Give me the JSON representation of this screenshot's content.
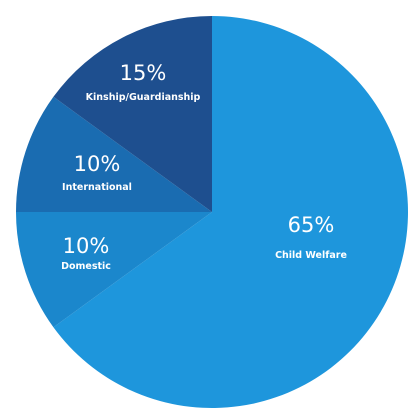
{
  "chart_data": {
    "type": "pie",
    "title": "",
    "start_angle_deg": 0,
    "direction": "clockwise",
    "slices": [
      {
        "label": "Child Welfare",
        "pct_label": "65%",
        "value": 65,
        "color": "#1e96dc"
      },
      {
        "label": "Domestic",
        "pct_label": "10%",
        "value": 10,
        "color": "#1b87cc"
      },
      {
        "label": "International",
        "pct_label": "10%",
        "value": 10,
        "color": "#1a6cb1"
      },
      {
        "label": "Kinship/Guardianship",
        "pct_label": "15%",
        "value": 15,
        "color": "#1e4f8f"
      }
    ]
  }
}
